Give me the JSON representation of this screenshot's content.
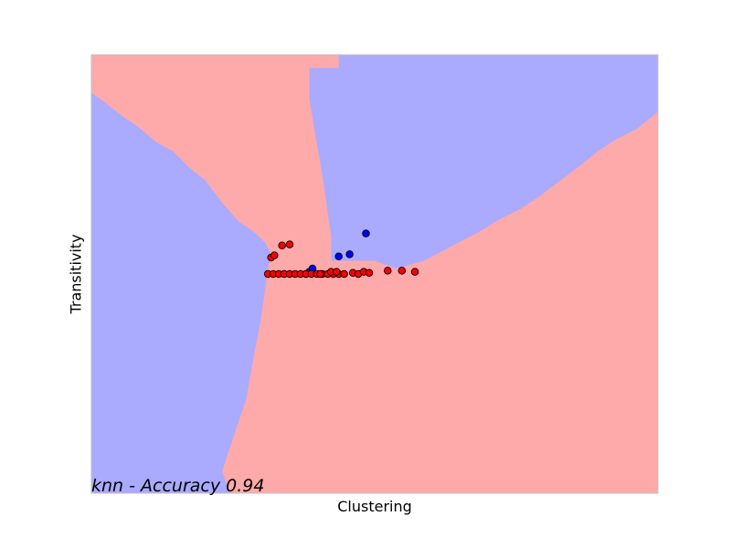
{
  "chart_data": {
    "type": "scatter",
    "title": "",
    "xlabel": "Clustering",
    "ylabel": "Transitivity",
    "annotation": "knn - Accuracy 0.94",
    "xlim": [
      -2.2,
      3.0
    ],
    "ylim": [
      -2.0,
      2.0
    ],
    "grid": false,
    "ticks_visible": false,
    "colors": {
      "region_blue": "#aaaaff",
      "region_red": "#ffaaaa",
      "point_blue": "#0000ff",
      "point_red": "#ff0000",
      "frame": "#bfbfbf"
    },
    "decision_regions": {
      "description_classes": [
        "blue",
        "red"
      ],
      "blue_regions": [
        [
          [
            -2.2,
            1.65
          ],
          [
            -2.12,
            1.6
          ],
          [
            -2.02,
            1.52
          ],
          [
            -1.9,
            1.43
          ],
          [
            -1.78,
            1.35
          ],
          [
            -1.6,
            1.2
          ],
          [
            -1.45,
            1.12
          ],
          [
            -1.3,
            0.97
          ],
          [
            -1.15,
            0.85
          ],
          [
            -1.0,
            0.65
          ],
          [
            -0.85,
            0.48
          ],
          [
            -0.7,
            0.38
          ],
          [
            -0.6,
            0.28
          ],
          [
            -0.55,
            0.18
          ],
          [
            -0.58,
            0.05
          ],
          [
            -0.6,
            -0.1
          ],
          [
            -0.65,
            -0.45
          ],
          [
            -0.7,
            -0.7
          ],
          [
            -0.78,
            -1.15
          ],
          [
            -0.85,
            -1.35
          ],
          [
            -0.95,
            -1.65
          ],
          [
            -1.0,
            -1.8
          ],
          [
            -0.93,
            -2.0
          ],
          [
            -2.2,
            -2.0
          ]
        ],
        [
          [
            0.07,
            2.0
          ],
          [
            3.0,
            2.0
          ],
          [
            3.0,
            1.48
          ],
          [
            2.9,
            1.4
          ],
          [
            2.8,
            1.32
          ],
          [
            2.6,
            1.22
          ],
          [
            2.45,
            1.12
          ],
          [
            2.3,
            1.0
          ],
          [
            2.1,
            0.85
          ],
          [
            1.9,
            0.7
          ],
          [
            1.75,
            0.6
          ],
          [
            1.55,
            0.5
          ],
          [
            1.35,
            0.38
          ],
          [
            1.1,
            0.25
          ],
          [
            0.85,
            0.12
          ],
          [
            0.6,
            0.05
          ],
          [
            0.4,
            0.12
          ],
          [
            0.0,
            0.12
          ],
          [
            0.0,
            0.35
          ],
          [
            -0.08,
            0.9
          ],
          [
            -0.15,
            1.3
          ],
          [
            -0.2,
            1.6
          ],
          [
            -0.2,
            1.88
          ],
          [
            0.07,
            1.88
          ]
        ]
      ]
    },
    "series": [
      {
        "name": "",
        "color": "#0000ff",
        "points": [
          [
            -0.2,
            0.02
          ],
          [
            -0.17,
            0.05
          ],
          [
            0.07,
            0.16
          ],
          [
            0.17,
            0.18
          ],
          [
            0.32,
            0.37
          ],
          [
            -0.23,
            0.0
          ]
        ]
      },
      {
        "name": "",
        "color": "#ff0000",
        "points": [
          [
            -0.55,
            0.15
          ],
          [
            -0.52,
            0.17
          ],
          [
            -0.45,
            0.26
          ],
          [
            -0.38,
            0.27
          ],
          [
            -0.58,
            0.0
          ],
          [
            -0.53,
            0.0
          ],
          [
            -0.48,
            0.0
          ],
          [
            -0.43,
            0.0
          ],
          [
            -0.38,
            0.0
          ],
          [
            -0.33,
            0.0
          ],
          [
            -0.28,
            0.0
          ],
          [
            -0.23,
            0.0
          ],
          [
            -0.18,
            0.0
          ],
          [
            -0.13,
            0.0
          ],
          [
            -0.08,
            0.0
          ],
          [
            -0.03,
            0.0
          ],
          [
            0.02,
            0.0
          ],
          [
            0.07,
            0.0
          ],
          [
            0.12,
            0.0
          ],
          [
            -0.1,
            0.0
          ],
          [
            0.0,
            0.02
          ],
          [
            0.05,
            0.02
          ],
          [
            0.2,
            0.01
          ],
          [
            0.25,
            0.0
          ],
          [
            0.3,
            0.02
          ],
          [
            0.35,
            0.01
          ],
          [
            0.52,
            0.03
          ],
          [
            0.65,
            0.03
          ],
          [
            0.77,
            0.02
          ]
        ]
      }
    ]
  }
}
